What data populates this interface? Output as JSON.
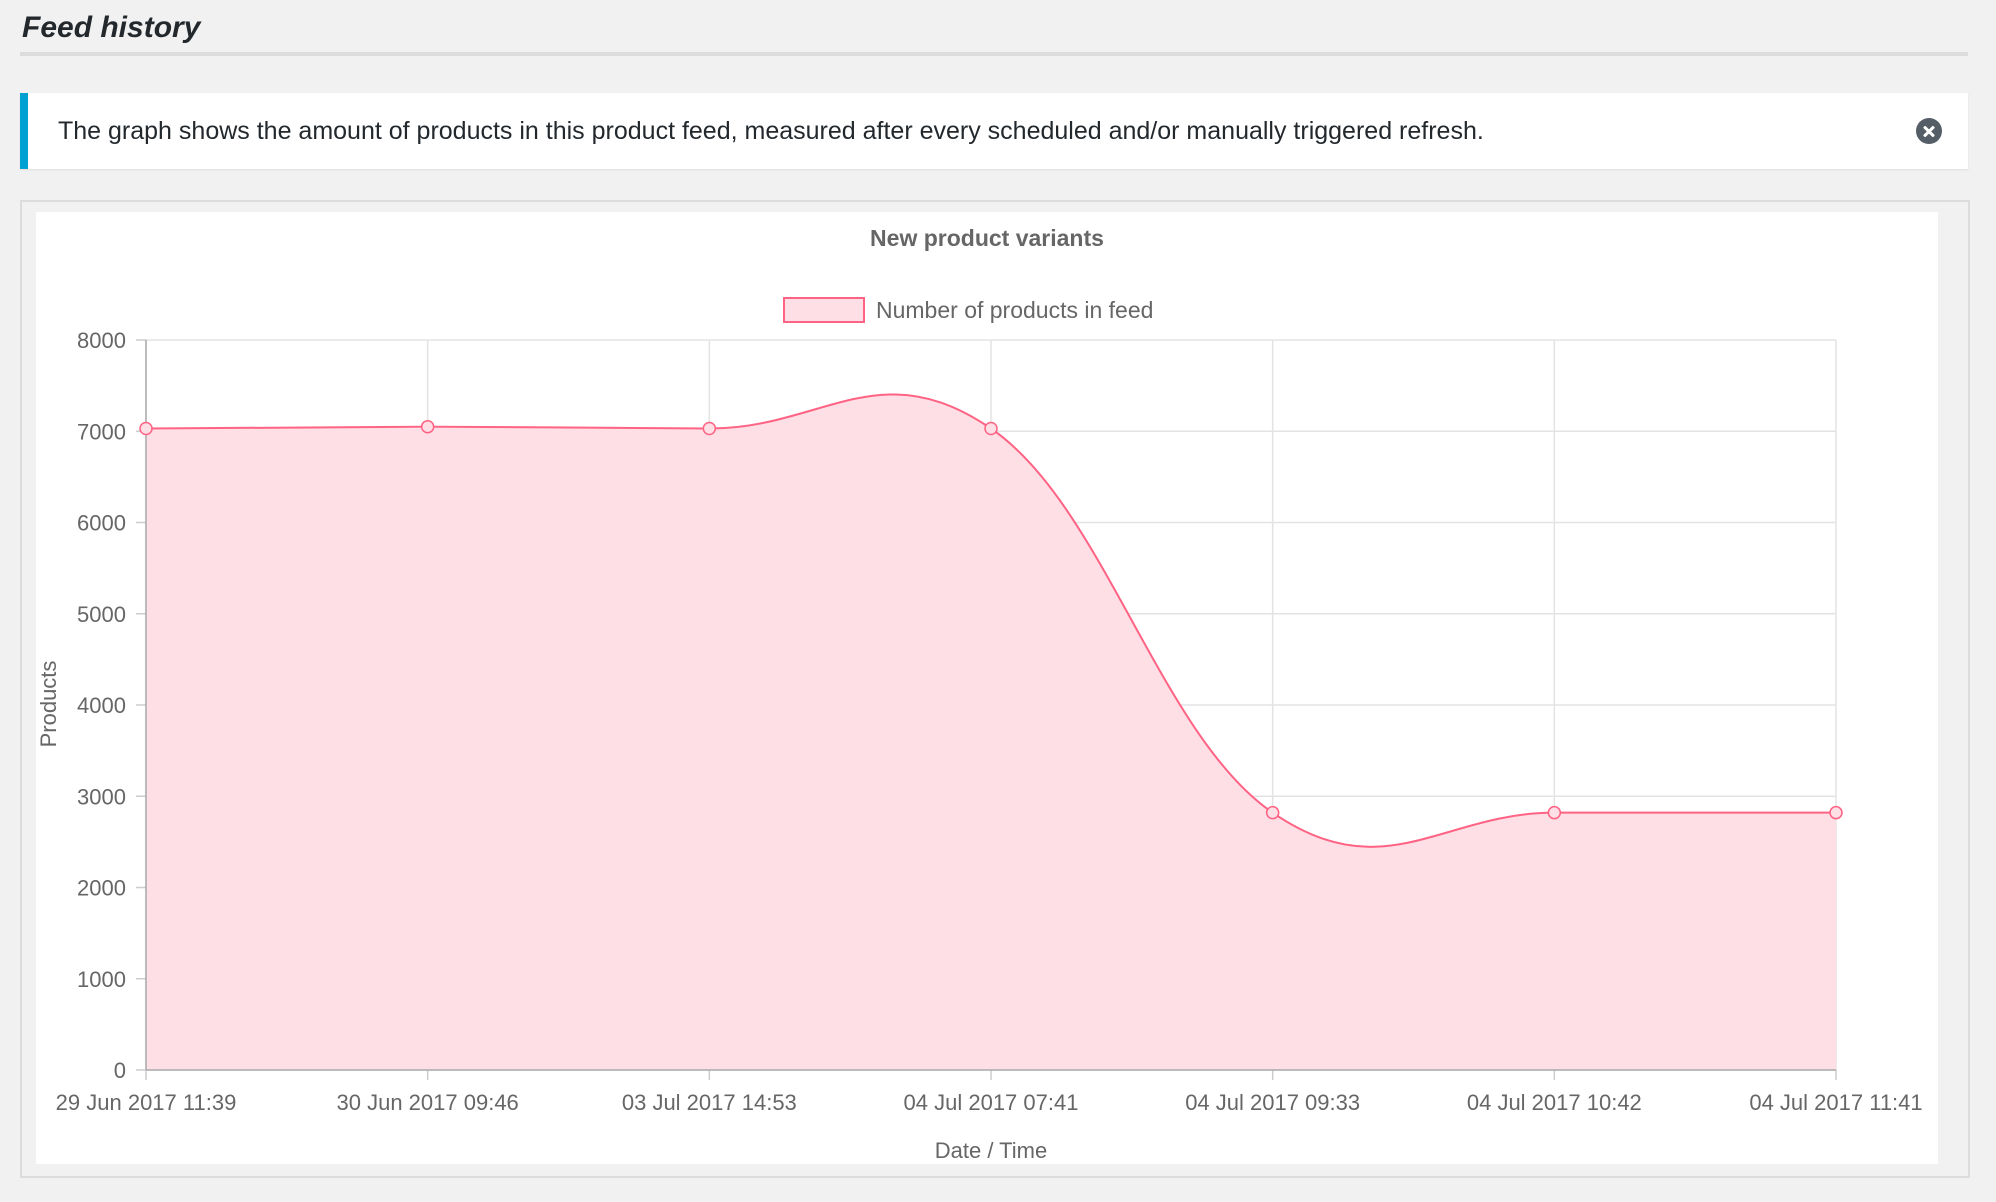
{
  "page": {
    "title": "Feed history"
  },
  "notice": {
    "text": "The graph shows the amount of products in this product feed, measured after every scheduled and/or manually triggered refresh."
  },
  "colors": {
    "notice_accent": "#00a0d2",
    "series_line": "#ff6384",
    "series_fill": "#ffdfe6",
    "grid": "#e3e3e3"
  },
  "chart_data": {
    "type": "line",
    "title": "New product variants",
    "xlabel": "Date / Time",
    "ylabel": "Products",
    "categories": [
      "29 Jun 2017 11:39",
      "30 Jun 2017 09:46",
      "03 Jul 2017 14:53",
      "04 Jul 2017 07:41",
      "04 Jul 2017 09:33",
      "04 Jul 2017 10:42",
      "04 Jul 2017 11:41"
    ],
    "series": [
      {
        "name": "Number of products in feed",
        "values": [
          7030,
          7050,
          7030,
          7030,
          2820,
          2820,
          2820
        ]
      }
    ],
    "ylim": [
      0,
      8000
    ],
    "yticks": [
      "0",
      "1000",
      "2000",
      "3000",
      "4000",
      "5000",
      "6000",
      "7000",
      "8000"
    ],
    "area_fill": true,
    "smooth": true,
    "grid": true,
    "legend_position": "top-center"
  }
}
